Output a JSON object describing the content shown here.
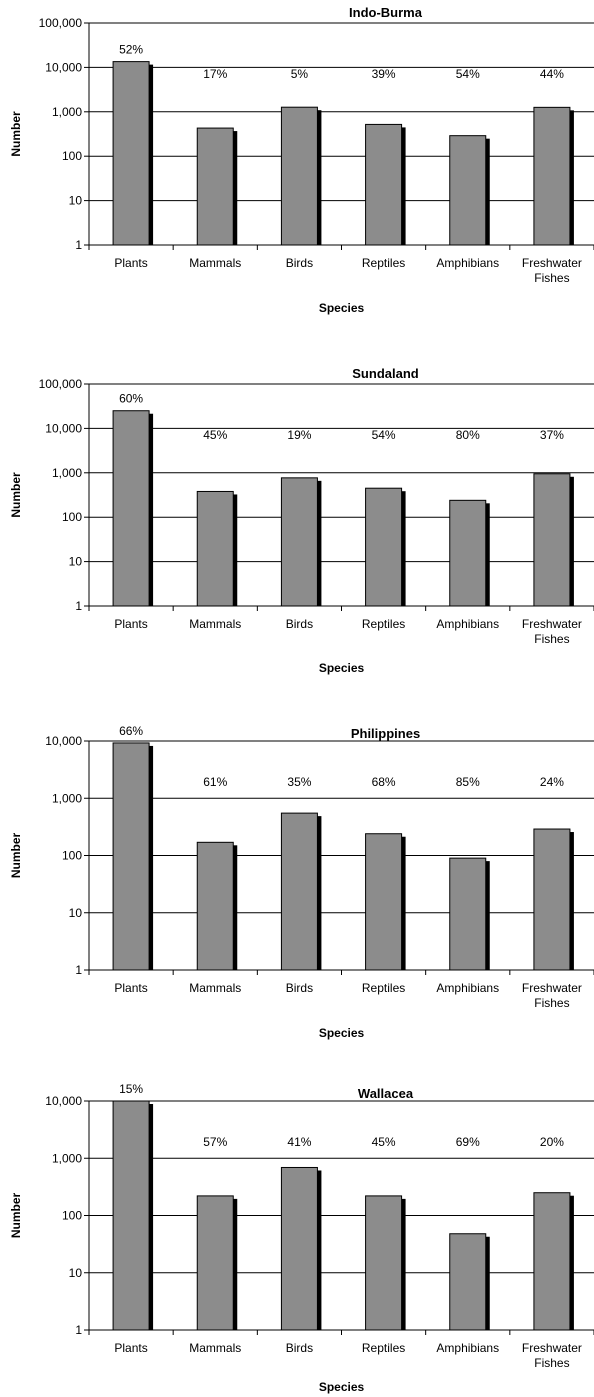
{
  "chart_data": [
    {
      "type": "bar",
      "title": "Indo-Burma",
      "xlabel": "Species",
      "ylabel": "Number",
      "yscale": "log",
      "ylim": [
        1,
        100000
      ],
      "yticks": [
        "1",
        "10",
        "100",
        "1,000",
        "10,000",
        "100,000"
      ],
      "categories": [
        "Plants",
        "Mammals",
        "Birds",
        "Reptiles",
        "Amphibians",
        "Freshwater Fishes"
      ],
      "values": [
        13500,
        430,
        1270,
        520,
        290,
        1260
      ],
      "annotations": [
        "52%",
        "17%",
        "5%",
        "39%",
        "54%",
        "44%"
      ],
      "grid": true,
      "legend": "none"
    },
    {
      "type": "bar",
      "title": "Sundaland",
      "xlabel": "Species",
      "ylabel": "Number",
      "yscale": "log",
      "ylim": [
        1,
        100000
      ],
      "yticks": [
        "1",
        "10",
        "100",
        "1,000",
        "10,000",
        "100,000"
      ],
      "categories": [
        "Plants",
        "Mammals",
        "Birds",
        "Reptiles",
        "Amphibians",
        "Freshwater Fishes"
      ],
      "values": [
        25000,
        380,
        770,
        450,
        240,
        950
      ],
      "annotations": [
        "60%",
        "45%",
        "19%",
        "54%",
        "80%",
        "37%"
      ],
      "grid": true,
      "legend": "none"
    },
    {
      "type": "bar",
      "title": "Philippines",
      "xlabel": "Species",
      "ylabel": "Number",
      "yscale": "log",
      "ylim": [
        1,
        10000
      ],
      "yticks": [
        "1",
        "10",
        "100",
        "1,000",
        "10,000"
      ],
      "categories": [
        "Plants",
        "Mammals",
        "Birds",
        "Reptiles",
        "Amphibians",
        "Freshwater Fishes"
      ],
      "values": [
        9250,
        170,
        550,
        240,
        90,
        290
      ],
      "annotations": [
        "66%",
        "61%",
        "35%",
        "68%",
        "85%",
        "24%"
      ],
      "grid": true,
      "legend": "none"
    },
    {
      "type": "bar",
      "title": "Wallacea",
      "xlabel": "Species",
      "ylabel": "Number",
      "yscale": "log",
      "ylim": [
        1,
        10000
      ],
      "yticks": [
        "1",
        "10",
        "100",
        "1,000",
        "10,000"
      ],
      "categories": [
        "Plants",
        "Mammals",
        "Birds",
        "Reptiles",
        "Amphibians",
        "Freshwater Fishes"
      ],
      "values": [
        10000,
        220,
        690,
        220,
        48,
        250
      ],
      "annotations": [
        "15%",
        "57%",
        "41%",
        "45%",
        "69%",
        "20%"
      ],
      "grid": true,
      "legend": "none"
    }
  ]
}
